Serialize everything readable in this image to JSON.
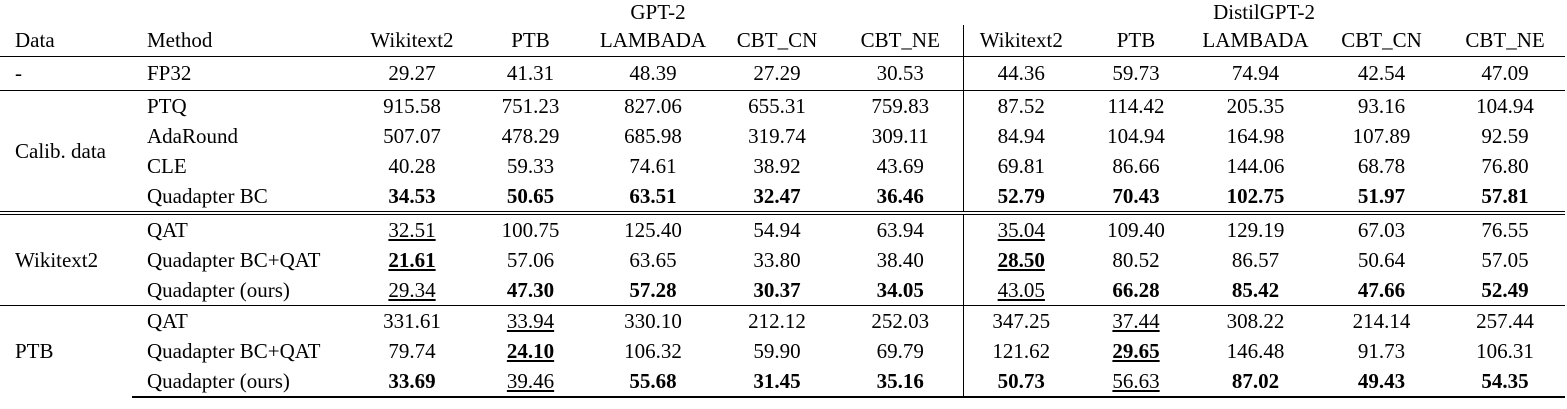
{
  "header": {
    "groups": [
      "GPT-2",
      "DistilGPT-2"
    ],
    "columns": [
      "Data",
      "Method",
      "Wikitext2",
      "PTB",
      "LAMBADA",
      "CBT_CN",
      "CBT_NE",
      "Wikitext2",
      "PTB",
      "LAMBADA",
      "CBT_CN",
      "CBT_NE"
    ]
  },
  "table": {
    "sections": [
      {
        "data": "-",
        "rows": [
          {
            "method": "FP32",
            "values": [
              "29.27",
              "41.31",
              "48.39",
              "27.29",
              "30.53",
              "44.36",
              "59.73",
              "74.94",
              "42.54",
              "47.09"
            ]
          }
        ]
      },
      {
        "data": "Calib. data",
        "rows": [
          {
            "method": "PTQ",
            "values": [
              "915.58",
              "751.23",
              "827.06",
              "655.31",
              "759.83",
              "87.52",
              "114.42",
              "205.35",
              "93.16",
              "104.94"
            ]
          },
          {
            "method": "AdaRound",
            "values": [
              "507.07",
              "478.29",
              "685.98",
              "319.74",
              "309.11",
              "84.94",
              "104.94",
              "164.98",
              "107.89",
              "92.59"
            ]
          },
          {
            "method": "CLE",
            "values": [
              "40.28",
              "59.33",
              "74.61",
              "38.92",
              "43.69",
              "69.81",
              "86.66",
              "144.06",
              "68.78",
              "76.80"
            ]
          },
          {
            "method": "Quadapter BC",
            "values": [
              "34.53",
              "50.65",
              "63.51",
              "32.47",
              "36.46",
              "52.79",
              "70.43",
              "102.75",
              "51.97",
              "57.81"
            ]
          }
        ]
      },
      {
        "data": "Wikitext2",
        "rows": [
          {
            "method": "QAT",
            "values": [
              "32.51",
              "100.75",
              "125.40",
              "54.94",
              "63.94",
              "35.04",
              "109.40",
              "129.19",
              "67.03",
              "76.55"
            ]
          },
          {
            "method": "Quadapter BC+QAT",
            "values": [
              "21.61",
              "57.06",
              "63.65",
              "33.80",
              "38.40",
              "28.50",
              "80.52",
              "86.57",
              "50.64",
              "57.05"
            ]
          },
          {
            "method": "Quadapter (ours)",
            "values": [
              "29.34",
              "47.30",
              "57.28",
              "30.37",
              "34.05",
              "43.05",
              "66.28",
              "85.42",
              "47.66",
              "52.49"
            ]
          }
        ]
      },
      {
        "data": "PTB",
        "rows": [
          {
            "method": "QAT",
            "values": [
              "331.61",
              "33.94",
              "330.10",
              "212.12",
              "252.03",
              "347.25",
              "37.44",
              "308.22",
              "214.14",
              "257.44"
            ]
          },
          {
            "method": "Quadapter BC+QAT",
            "values": [
              "79.74",
              "24.10",
              "106.32",
              "59.90",
              "69.79",
              "121.62",
              "29.65",
              "146.48",
              "91.73",
              "106.31"
            ]
          },
          {
            "method": "Quadapter (ours)",
            "values": [
              "33.69",
              "39.46",
              "55.68",
              "31.45",
              "35.16",
              "50.73",
              "56.63",
              "87.02",
              "49.43",
              "54.35"
            ]
          }
        ]
      }
    ]
  }
}
